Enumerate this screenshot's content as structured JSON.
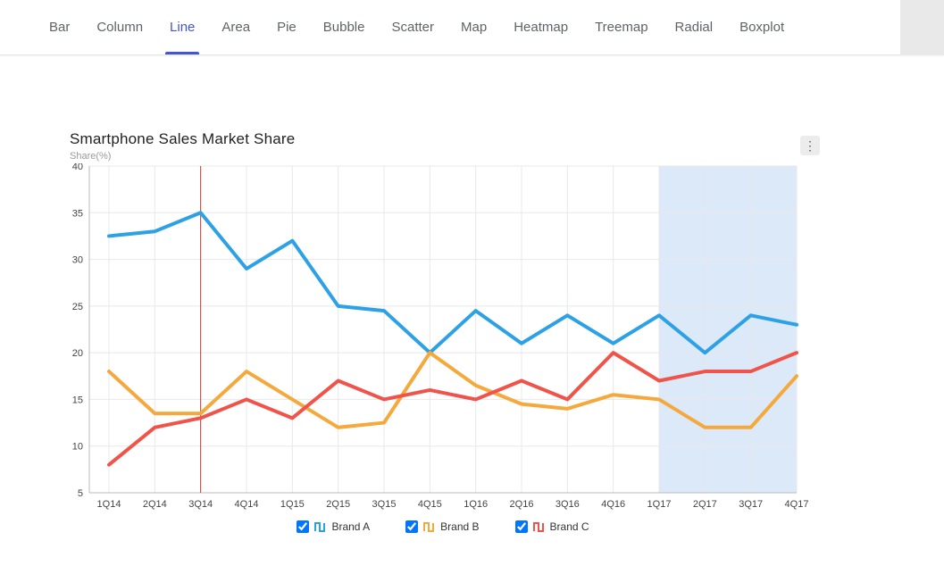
{
  "nav": {
    "tabs": [
      {
        "label": "Bar"
      },
      {
        "label": "Column"
      },
      {
        "label": "Line"
      },
      {
        "label": "Area"
      },
      {
        "label": "Pie"
      },
      {
        "label": "Bubble"
      },
      {
        "label": "Scatter"
      },
      {
        "label": "Map"
      },
      {
        "label": "Heatmap"
      },
      {
        "label": "Treemap"
      },
      {
        "label": "Radial"
      },
      {
        "label": "Boxplot"
      }
    ],
    "active": "Line",
    "accent_color": "#4255D4"
  },
  "chart": {
    "title": "Smartphone Sales Market Share",
    "subtitle": "Share(%)",
    "menu_icon": "vertical-ellipsis",
    "colors": {
      "grid": "#e8e8e8",
      "axis": "#bbbbbb",
      "band": "#dce9f8",
      "marker_line": "#c0392b",
      "tick_text": "#444444"
    }
  },
  "chart_data": {
    "type": "line",
    "title": "Smartphone Sales Market Share",
    "ylabel": "Share(%)",
    "xlabel": "",
    "ylim": [
      5,
      40
    ],
    "yticks": [
      5,
      10,
      15,
      20,
      25,
      30,
      35,
      40
    ],
    "grid": true,
    "legend_position": "bottom",
    "categories": [
      "1Q14",
      "2Q14",
      "3Q14",
      "4Q14",
      "1Q15",
      "2Q15",
      "3Q15",
      "4Q15",
      "1Q16",
      "2Q16",
      "3Q16",
      "4Q16",
      "1Q17",
      "2Q17",
      "3Q17",
      "4Q17"
    ],
    "series": [
      {
        "name": "Brand A",
        "color": "#2CA1E6",
        "values": [
          32.5,
          33,
          35,
          29,
          32,
          25,
          24.5,
          20,
          24.5,
          21,
          24,
          21,
          24,
          20,
          24,
          23
        ]
      },
      {
        "name": "Brand B",
        "color": "#F5A93C",
        "values": [
          18,
          13.5,
          13.5,
          18,
          15,
          12,
          12.5,
          20,
          16.5,
          14.5,
          14,
          15.5,
          15,
          12,
          12,
          17.5
        ]
      },
      {
        "name": "Brand C",
        "color": "#F0534A",
        "values": [
          8,
          12,
          13,
          15,
          13,
          17,
          15,
          16,
          15,
          17,
          15,
          20,
          17,
          18,
          18,
          20
        ]
      }
    ],
    "highlight_band": {
      "from": "1Q17",
      "to": "4Q17"
    },
    "vertical_marker": {
      "at": "3Q14"
    }
  },
  "legend": {
    "items": [
      {
        "label": "Brand A",
        "checked": true
      },
      {
        "label": "Brand B",
        "checked": true
      },
      {
        "label": "Brand C",
        "checked": true
      }
    ]
  }
}
